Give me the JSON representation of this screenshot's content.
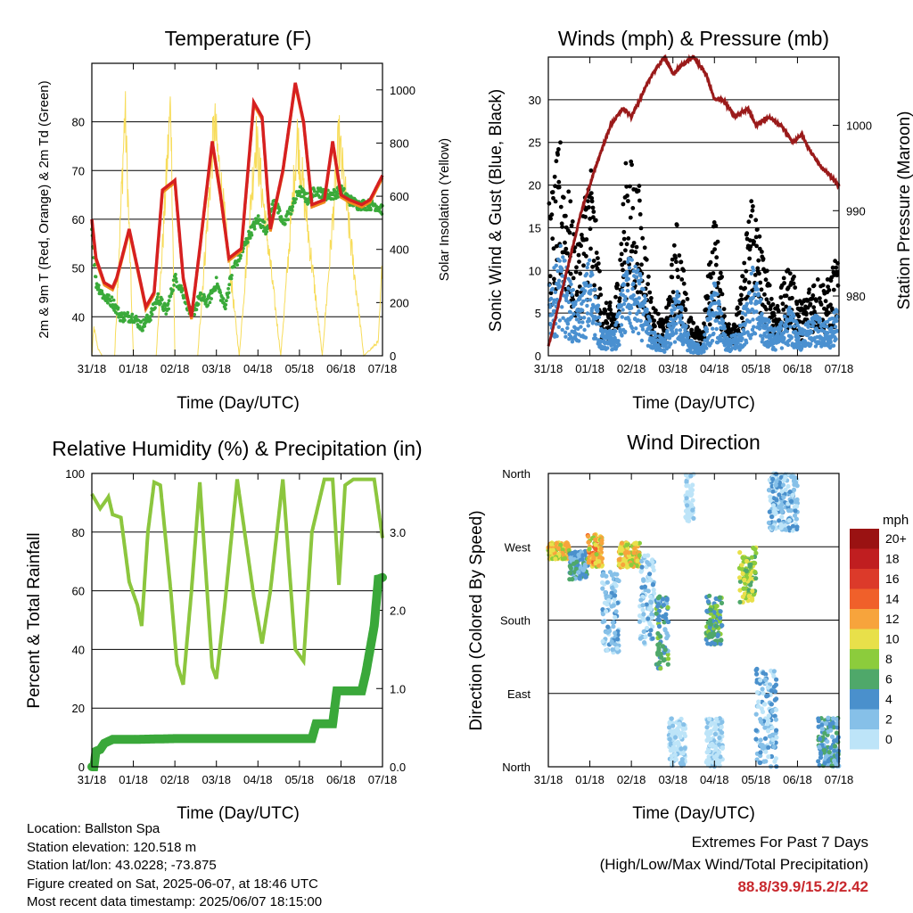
{
  "chart_data": [
    {
      "type": "line",
      "title": "Temperature (F)",
      "xlabel": "Time (Day/UTC)",
      "ylabel": "2m & 9m T (Red, Orange) & 2m Td (Green)",
      "y2label": "Solar Insolation (Yellow)",
      "categories": [
        "31/18",
        "01/18",
        "02/18",
        "03/18",
        "04/18",
        "05/18",
        "06/18",
        "07/18"
      ],
      "ylim": [
        32,
        92
      ],
      "y2lim": [
        0,
        1100
      ],
      "yticks": [
        "40",
        "50",
        "60",
        "70",
        "80"
      ],
      "y2ticks": [
        "0",
        "200",
        "400",
        "600",
        "800",
        "1000"
      ],
      "colors": {
        "t2m": "#d62020",
        "t9m": "#f08a1c",
        "td": "#3aaa3a",
        "solar": "#f7dc5a"
      },
      "series": [
        {
          "x": [
            0,
            0.1,
            0.3,
            0.5,
            0.6,
            0.9,
            1.1,
            1.3,
            1.5,
            1.7,
            2.0,
            2.2,
            2.4,
            2.6,
            2.9,
            3.1,
            3.3,
            3.6,
            3.9,
            4.1,
            4.3,
            4.6,
            4.9,
            5.1,
            5.3,
            5.6,
            5.8,
            6.0,
            6.2,
            6.5,
            6.7,
            7.0
          ],
          "y": [
            60,
            52,
            47,
            46,
            48,
            58,
            50,
            42,
            45,
            66,
            68,
            48,
            40,
            54,
            76,
            65,
            52,
            54,
            84,
            81,
            58,
            70,
            88,
            80,
            63,
            64,
            76,
            65,
            64,
            63,
            64,
            69
          ]
        },
        {
          "x": [
            0,
            0.1,
            0.3,
            0.5,
            0.7,
            1.0,
            1.2,
            1.4,
            1.6,
            1.8,
            2.0,
            2.2,
            2.4,
            2.6,
            2.8,
            3.0,
            3.2,
            3.4,
            3.6,
            3.8,
            4.0,
            4.2,
            4.4,
            4.6,
            4.8,
            5.0,
            5.2,
            5.4,
            5.6,
            5.8,
            6.0,
            6.2,
            6.4,
            6.6,
            6.8,
            7.0
          ],
          "y": [
            58,
            47,
            44,
            43,
            40,
            40,
            38,
            40,
            44,
            41,
            48,
            45,
            40,
            44,
            43,
            47,
            42,
            50,
            53,
            57,
            60,
            58,
            64,
            59,
            62,
            66,
            64,
            66,
            65,
            65,
            66,
            64,
            63,
            63,
            63,
            62
          ]
        },
        {
          "x": [
            0,
            0.05,
            0.15,
            0.25,
            0.55,
            0.8,
            1.0,
            1.2,
            1.55,
            1.9,
            2.0,
            2.2,
            2.55,
            2.95,
            3.55,
            3.95,
            4.55,
            4.95,
            5.55,
            5.95,
            6.55,
            6.9,
            7.0
          ],
          "y": [
            0,
            120,
            30,
            0,
            0,
            1060,
            0,
            0,
            0,
            1090,
            0,
            0,
            0,
            1000,
            0,
            940,
            0,
            940,
            0,
            930,
            0,
            60,
            420
          ]
        }
      ]
    },
    {
      "type": "scatter",
      "title": "Winds (mph) & Pressure (mb)",
      "xlabel": "Time (Day/UTC)",
      "ylabel": "Sonic Wind & Gust (Blue, Black)",
      "y2label": "Station Pressure (Maroon)",
      "categories": [
        "31/18",
        "01/18",
        "02/18",
        "03/18",
        "04/18",
        "05/18",
        "06/18",
        "07/18"
      ],
      "ylim": [
        0,
        35
      ],
      "y2lim": [
        973,
        1008
      ],
      "yticks": [
        "0",
        "5",
        "10",
        "15",
        "20",
        "25",
        "30"
      ],
      "y2ticks": [
        "980",
        "990",
        "1000"
      ],
      "colors": {
        "wind": "#4a90d0",
        "gust": "#000000",
        "pressure": "#9a1a1a"
      },
      "wind_envelope": {
        "x": [
          0,
          0.3,
          0.7,
          1.0,
          1.3,
          1.6,
          1.9,
          2.2,
          2.5,
          2.8,
          3.1,
          3.4,
          3.7,
          4.0,
          4.3,
          4.6,
          4.9,
          5.2,
          5.5,
          5.8,
          6.1,
          6.4,
          6.7,
          7.0
        ],
        "y": [
          8,
          13,
          6,
          12,
          3,
          3,
          12,
          10,
          3,
          2,
          8,
          2,
          1,
          9,
          2,
          3,
          11,
          5,
          3,
          6,
          3,
          5,
          4,
          6
        ]
      },
      "gust_envelope": {
        "x": [
          0,
          0.3,
          0.7,
          1.0,
          1.3,
          1.6,
          1.9,
          2.2,
          2.5,
          2.8,
          3.1,
          3.4,
          3.7,
          4.0,
          4.3,
          4.6,
          4.9,
          5.2,
          5.5,
          5.8,
          6.1,
          6.4,
          6.7,
          7.0
        ],
        "y": [
          14,
          21,
          10,
          20,
          5,
          5,
          20,
          16,
          5,
          3,
          13,
          4,
          2,
          14,
          3,
          5,
          17,
          9,
          5,
          9,
          5,
          8,
          7,
          10
        ]
      },
      "pressure": {
        "x": [
          0,
          0.3,
          0.8,
          1.2,
          1.5,
          1.8,
          2.0,
          2.2,
          2.5,
          2.8,
          3.0,
          3.2,
          3.5,
          3.8,
          4.0,
          4.2,
          4.5,
          4.8,
          5.0,
          5.3,
          5.6,
          5.9,
          6.1,
          6.3,
          6.6,
          6.8,
          7.0
        ],
        "y": [
          974,
          980,
          990,
          996,
          1000,
          1002,
          1001,
          1003,
          1006,
          1008,
          1006,
          1007,
          1008,
          1006,
          1003,
          1003,
          1001,
          1002,
          1000,
          1001,
          1000,
          998,
          999,
          997,
          995,
          994,
          993
        ]
      }
    },
    {
      "type": "line",
      "title": "Relative Humidity (%) & Precipitation (in)",
      "xlabel": "Time (Day/UTC)",
      "ylabel": "Percent & Total Rainfall",
      "categories": [
        "31/18",
        "01/18",
        "02/18",
        "03/18",
        "04/18",
        "05/18",
        "06/18",
        "07/18"
      ],
      "ylim": [
        0,
        100
      ],
      "y2lim": [
        0,
        3.75
      ],
      "yticks": [
        "0",
        "20",
        "40",
        "60",
        "80",
        "100"
      ],
      "y2ticks": [
        "0.0",
        "1.0",
        "2.0",
        "3.0"
      ],
      "colors": {
        "rh": "#8cc63e",
        "precip": "#3aa83a"
      },
      "series": [
        {
          "x": [
            0,
            0.2,
            0.4,
            0.5,
            0.7,
            0.9,
            1.1,
            1.2,
            1.35,
            1.5,
            1.65,
            1.9,
            2.05,
            2.2,
            2.4,
            2.6,
            2.9,
            3.0,
            3.2,
            3.5,
            3.9,
            4.1,
            4.3,
            4.6,
            4.9,
            5.1,
            5.3,
            5.6,
            5.8,
            5.95,
            6.1,
            6.3,
            6.6,
            6.8,
            7.0
          ],
          "y": [
            93,
            88,
            92,
            86,
            85,
            63,
            55,
            48,
            80,
            97,
            96,
            60,
            35,
            28,
            60,
            97,
            34,
            30,
            55,
            98,
            58,
            42,
            60,
            98,
            40,
            36,
            80,
            98,
            98,
            62,
            96,
            98,
            98,
            98,
            78
          ]
        },
        {
          "x": [
            0,
            0.05,
            0.1,
            0.2,
            0.3,
            0.5,
            1.0,
            2.0,
            3.0,
            4.0,
            5.0,
            5.3,
            5.4,
            5.8,
            5.9,
            6.5,
            6.6,
            6.8,
            6.9,
            7.0
          ],
          "y": [
            0,
            0.0,
            0.2,
            0.22,
            0.3,
            0.35,
            0.35,
            0.36,
            0.36,
            0.36,
            0.36,
            0.36,
            0.55,
            0.55,
            0.97,
            0.97,
            1.2,
            1.8,
            2.4,
            2.42
          ]
        }
      ]
    },
    {
      "type": "scatter",
      "title": "Wind Direction",
      "xlabel": "Time (Day/UTC)",
      "ylabel": "Direction (Colored By Speed)",
      "categories": [
        "31/18",
        "01/18",
        "02/18",
        "03/18",
        "04/18",
        "05/18",
        "06/18",
        "07/18"
      ],
      "yticks": [
        "North",
        "East",
        "South",
        "West",
        "North"
      ],
      "ylim": [
        0,
        360
      ],
      "legend": {
        "title": "mph",
        "labels": [
          "0",
          "2",
          "4",
          "6",
          "8",
          "10",
          "12",
          "14",
          "16",
          "18",
          "20+"
        ],
        "colors": [
          "#bde4f8",
          "#86c0e8",
          "#4a90cc",
          "#4fa86a",
          "#8ccc3c",
          "#e8e04a",
          "#f7a43c",
          "#f0602a",
          "#dc3a2a",
          "#c01e20",
          "#9a1212"
        ]
      },
      "clusters": [
        {
          "x": [
            0,
            0.5
          ],
          "dir": [
            255,
            275
          ],
          "speed": 11
        },
        {
          "x": [
            0.5,
            0.95
          ],
          "dir": [
            230,
            265
          ],
          "speed": 5
        },
        {
          "x": [
            0.95,
            1.3
          ],
          "dir": [
            245,
            285
          ],
          "speed": 12
        },
        {
          "x": [
            1.3,
            1.7
          ],
          "dir": [
            140,
            240
          ],
          "speed": 3
        },
        {
          "x": [
            1.7,
            2.2
          ],
          "dir": [
            245,
            275
          ],
          "speed": 11
        },
        {
          "x": [
            2.2,
            2.55
          ],
          "dir": [
            150,
            260
          ],
          "speed": 2
        },
        {
          "x": [
            2.6,
            2.9
          ],
          "dir": [
            120,
            210
          ],
          "speed": 6
        },
        {
          "x": [
            2.9,
            3.3
          ],
          "dir": [
            0,
            60
          ],
          "speed": 1
        },
        {
          "x": [
            3.3,
            3.5
          ],
          "dir": [
            300,
            360
          ],
          "speed": 1
        },
        {
          "x": [
            3.8,
            4.2
          ],
          "dir": [
            150,
            210
          ],
          "speed": 7
        },
        {
          "x": [
            3.8,
            4.2
          ],
          "dir": [
            0,
            60
          ],
          "speed": 1
        },
        {
          "x": [
            4.6,
            5.0
          ],
          "dir": [
            200,
            270
          ],
          "speed": 9
        },
        {
          "x": [
            5.0,
            5.5
          ],
          "dir": [
            0,
            120
          ],
          "speed": 3
        },
        {
          "x": [
            5.3,
            6.0
          ],
          "dir": [
            290,
            360
          ],
          "speed": 3
        },
        {
          "x": [
            6.5,
            7.0
          ],
          "dir": [
            0,
            60
          ],
          "speed": 5
        }
      ]
    }
  ],
  "info": {
    "location": "Location: Ballston Spa",
    "elevation": "Station elevation: 120.518 m",
    "latlon": "Station lat/lon: 43.0228; -73.875",
    "created": "Figure created on Sat, 2025-06-07, at 18:46 UTC",
    "recent": "Most recent data timestamp: 2025/06/07 18:15:00"
  },
  "extremes": {
    "title": "Extremes For Past 7 Days",
    "subtitle": "(High/Low/Max Wind/Total Precipitation)",
    "values": "88.8/39.9/15.2/2.42"
  }
}
